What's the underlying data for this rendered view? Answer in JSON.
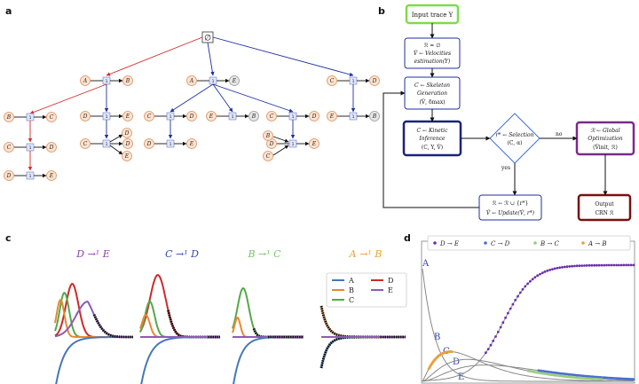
{
  "panels": {
    "a": "a",
    "b": "b",
    "c": "c",
    "d": "d"
  },
  "tree": {
    "root": "∅",
    "rows": [
      [
        {
          "from": "A",
          "to": "B",
          "gray": false
        },
        {
          "from": "A",
          "to": "E",
          "gray": true
        },
        {
          "from": "C",
          "to": "D",
          "gray": false
        }
      ]
    ],
    "species": [
      "A",
      "B",
      "C",
      "D",
      "E"
    ]
  },
  "flow": {
    "input": "Input trace Y",
    "init": [
      "ℛ = ∅",
      "V̂ ← Velocities",
      "estimation(Y)"
    ],
    "skeleton": [
      "C ← Skeleton",
      "Generation",
      "(V̂, δmax)"
    ],
    "kinetic": [
      "C ← Kinetic",
      "Inference",
      "(C, Y, V̂)"
    ],
    "selection": [
      "r* ← Selection",
      "(C, α)"
    ],
    "global": [
      "ℛ ← Global",
      "Optimization",
      "(V̂init, ℛ)"
    ],
    "update": [
      "ℛ ← ℛ ∪ {r*}",
      "V̂ ← Update(V̂, r*)"
    ],
    "output": [
      "Output",
      "CRN ℛ"
    ],
    "yes": "yes",
    "no": "no"
  },
  "panel_c": {
    "titles": [
      {
        "text": "D →¹ E",
        "color": "#8e44ad"
      },
      {
        "text": "C →¹ D",
        "color": "#3949ab"
      },
      {
        "text": "B →¹ C",
        "color": "#7cc36a"
      },
      {
        "text": "A →¹ B",
        "color": "#f0a030"
      }
    ],
    "legend": [
      {
        "label": "A",
        "color": "#4477bb"
      },
      {
        "label": "D",
        "color": "#cc2a2a"
      },
      {
        "label": "B",
        "color": "#e8892f"
      },
      {
        "label": "E",
        "color": "#8e5bb5"
      },
      {
        "label": "C",
        "color": "#55a84a"
      }
    ]
  },
  "panel_d": {
    "legend": [
      {
        "label": "D → E",
        "color": "#6a2fb0"
      },
      {
        "label": "C → D",
        "color": "#4a6fd0"
      },
      {
        "label": "B → C",
        "color": "#9acb80"
      },
      {
        "label": "A → B",
        "color": "#e8a040"
      }
    ],
    "curve_labels": [
      "A",
      "B",
      "C",
      "D",
      "E"
    ]
  },
  "colors": {
    "node_fill": "#fbe3d0",
    "node_stroke": "#e09060",
    "red": "#d62a2a",
    "blue": "#1f2f9f",
    "green_box": "#7ddc4a",
    "purple_box": "#7a2a8a",
    "darkred_box": "#7a1010",
    "navy_box": "#1a237e"
  }
}
